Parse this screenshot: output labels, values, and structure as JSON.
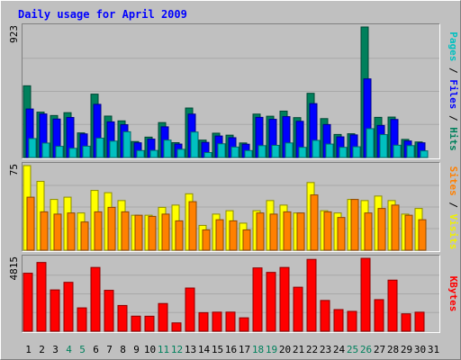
{
  "chart_data": {
    "type": "bar",
    "title": "Daily usage for April 2009",
    "categories": [
      "1",
      "2",
      "3",
      "4",
      "5",
      "6",
      "7",
      "8",
      "9",
      "10",
      "11",
      "12",
      "13",
      "14",
      "15",
      "16",
      "17",
      "18",
      "19",
      "20",
      "21",
      "22",
      "23",
      "24",
      "25",
      "26",
      "27",
      "28",
      "29",
      "30",
      "31"
    ],
    "weekend_days": [
      "4",
      "5",
      "11",
      "12",
      "18",
      "19",
      "25",
      "26"
    ],
    "day_label_colors": {
      "weekday": "#000000",
      "weekend": "#00805c"
    },
    "panels": [
      {
        "id": "hits",
        "ymax_label": "923",
        "ymax": 923,
        "legend": [
          {
            "text": "Pages",
            "color": "#00c0c0"
          },
          {
            "text": " / ",
            "color": "#000000"
          },
          {
            "text": "Files",
            "color": "#0000ff"
          },
          {
            "text": " / ",
            "color": "#000000"
          },
          {
            "text": "Hits",
            "color": "#00805c"
          }
        ],
        "series": [
          {
            "name": "Hits",
            "color": "#00805c",
            "values": [
              507,
              321,
              297,
              317,
              174,
              448,
              293,
              259,
              113,
              144,
              247,
              105,
              350,
              123,
              172,
              158,
              103,
              307,
              292,
              328,
              282,
              454,
              275,
              163,
              168,
              923,
              284,
              286,
              128,
              110,
              0
            ]
          },
          {
            "name": "Files",
            "color": "#0000ff",
            "values": [
              343,
              308,
              272,
              283,
              167,
              376,
              252,
              232,
              104,
              130,
              217,
              95,
              307,
              107,
              152,
              140,
              94,
              284,
              270,
              289,
              256,
              381,
              233,
              146,
              160,
              556,
              227,
              269,
              117,
              104,
              0
            ]
          },
          {
            "name": "Pages",
            "color": "#00c0c0",
            "values": [
              134,
              102,
              79,
              65,
              80,
              137,
              116,
              182,
              49,
              50,
              123,
              58,
              180,
              35,
              97,
              74,
              49,
              84,
              86,
              103,
              72,
              121,
              95,
              72,
              76,
              204,
              162,
              87,
              84,
              47,
              0
            ]
          }
        ]
      },
      {
        "id": "visits",
        "ymax_label": "75",
        "ymax": 75,
        "legend": [
          {
            "text": "Sites",
            "color": "#ff8000"
          },
          {
            "text": " / ",
            "color": "#000000"
          },
          {
            "text": "Visits",
            "color": "#f0f000"
          }
        ],
        "series": [
          {
            "name": "Visits",
            "color": "#ffff00",
            "values": [
              75,
              61,
              45,
              47,
              33,
              53,
              51,
              44,
              31,
              31,
              38,
              40,
              50,
              22,
              32,
              35,
              24,
              35,
              44,
              40,
              33,
              60,
              35,
              33,
              45,
              44,
              48,
              44,
              32,
              37,
              0
            ]
          },
          {
            "name": "Sites",
            "color": "#ff8000",
            "values": [
              47,
              34,
              32,
              33,
              25,
              34,
              38,
              34,
              31,
              30,
              32,
              26,
              43,
              18,
              27,
              26,
              18,
              33,
              32,
              34,
              33,
              49,
              34,
              29,
              45,
              33,
              37,
              40,
              31,
              27,
              0
            ]
          }
        ]
      },
      {
        "id": "kbytes",
        "ymax_label": "4815",
        "ymax": 4815,
        "legend": [
          {
            "text": "KBytes",
            "color": "#ff0000"
          }
        ],
        "series": [
          {
            "name": "KBytes",
            "color": "#ff0000",
            "values": [
              3830,
              4539,
              2728,
              3229,
              1541,
              4211,
              2701,
              1699,
              995,
              990,
              1829,
              550,
              2852,
              1226,
              1260,
              1262,
              884,
              4180,
              3884,
              4211,
              2906,
              4744,
              2031,
              1428,
              1310,
              4814,
              2084,
              3374,
              1149,
              1257,
              0
            ]
          }
        ]
      }
    ]
  }
}
